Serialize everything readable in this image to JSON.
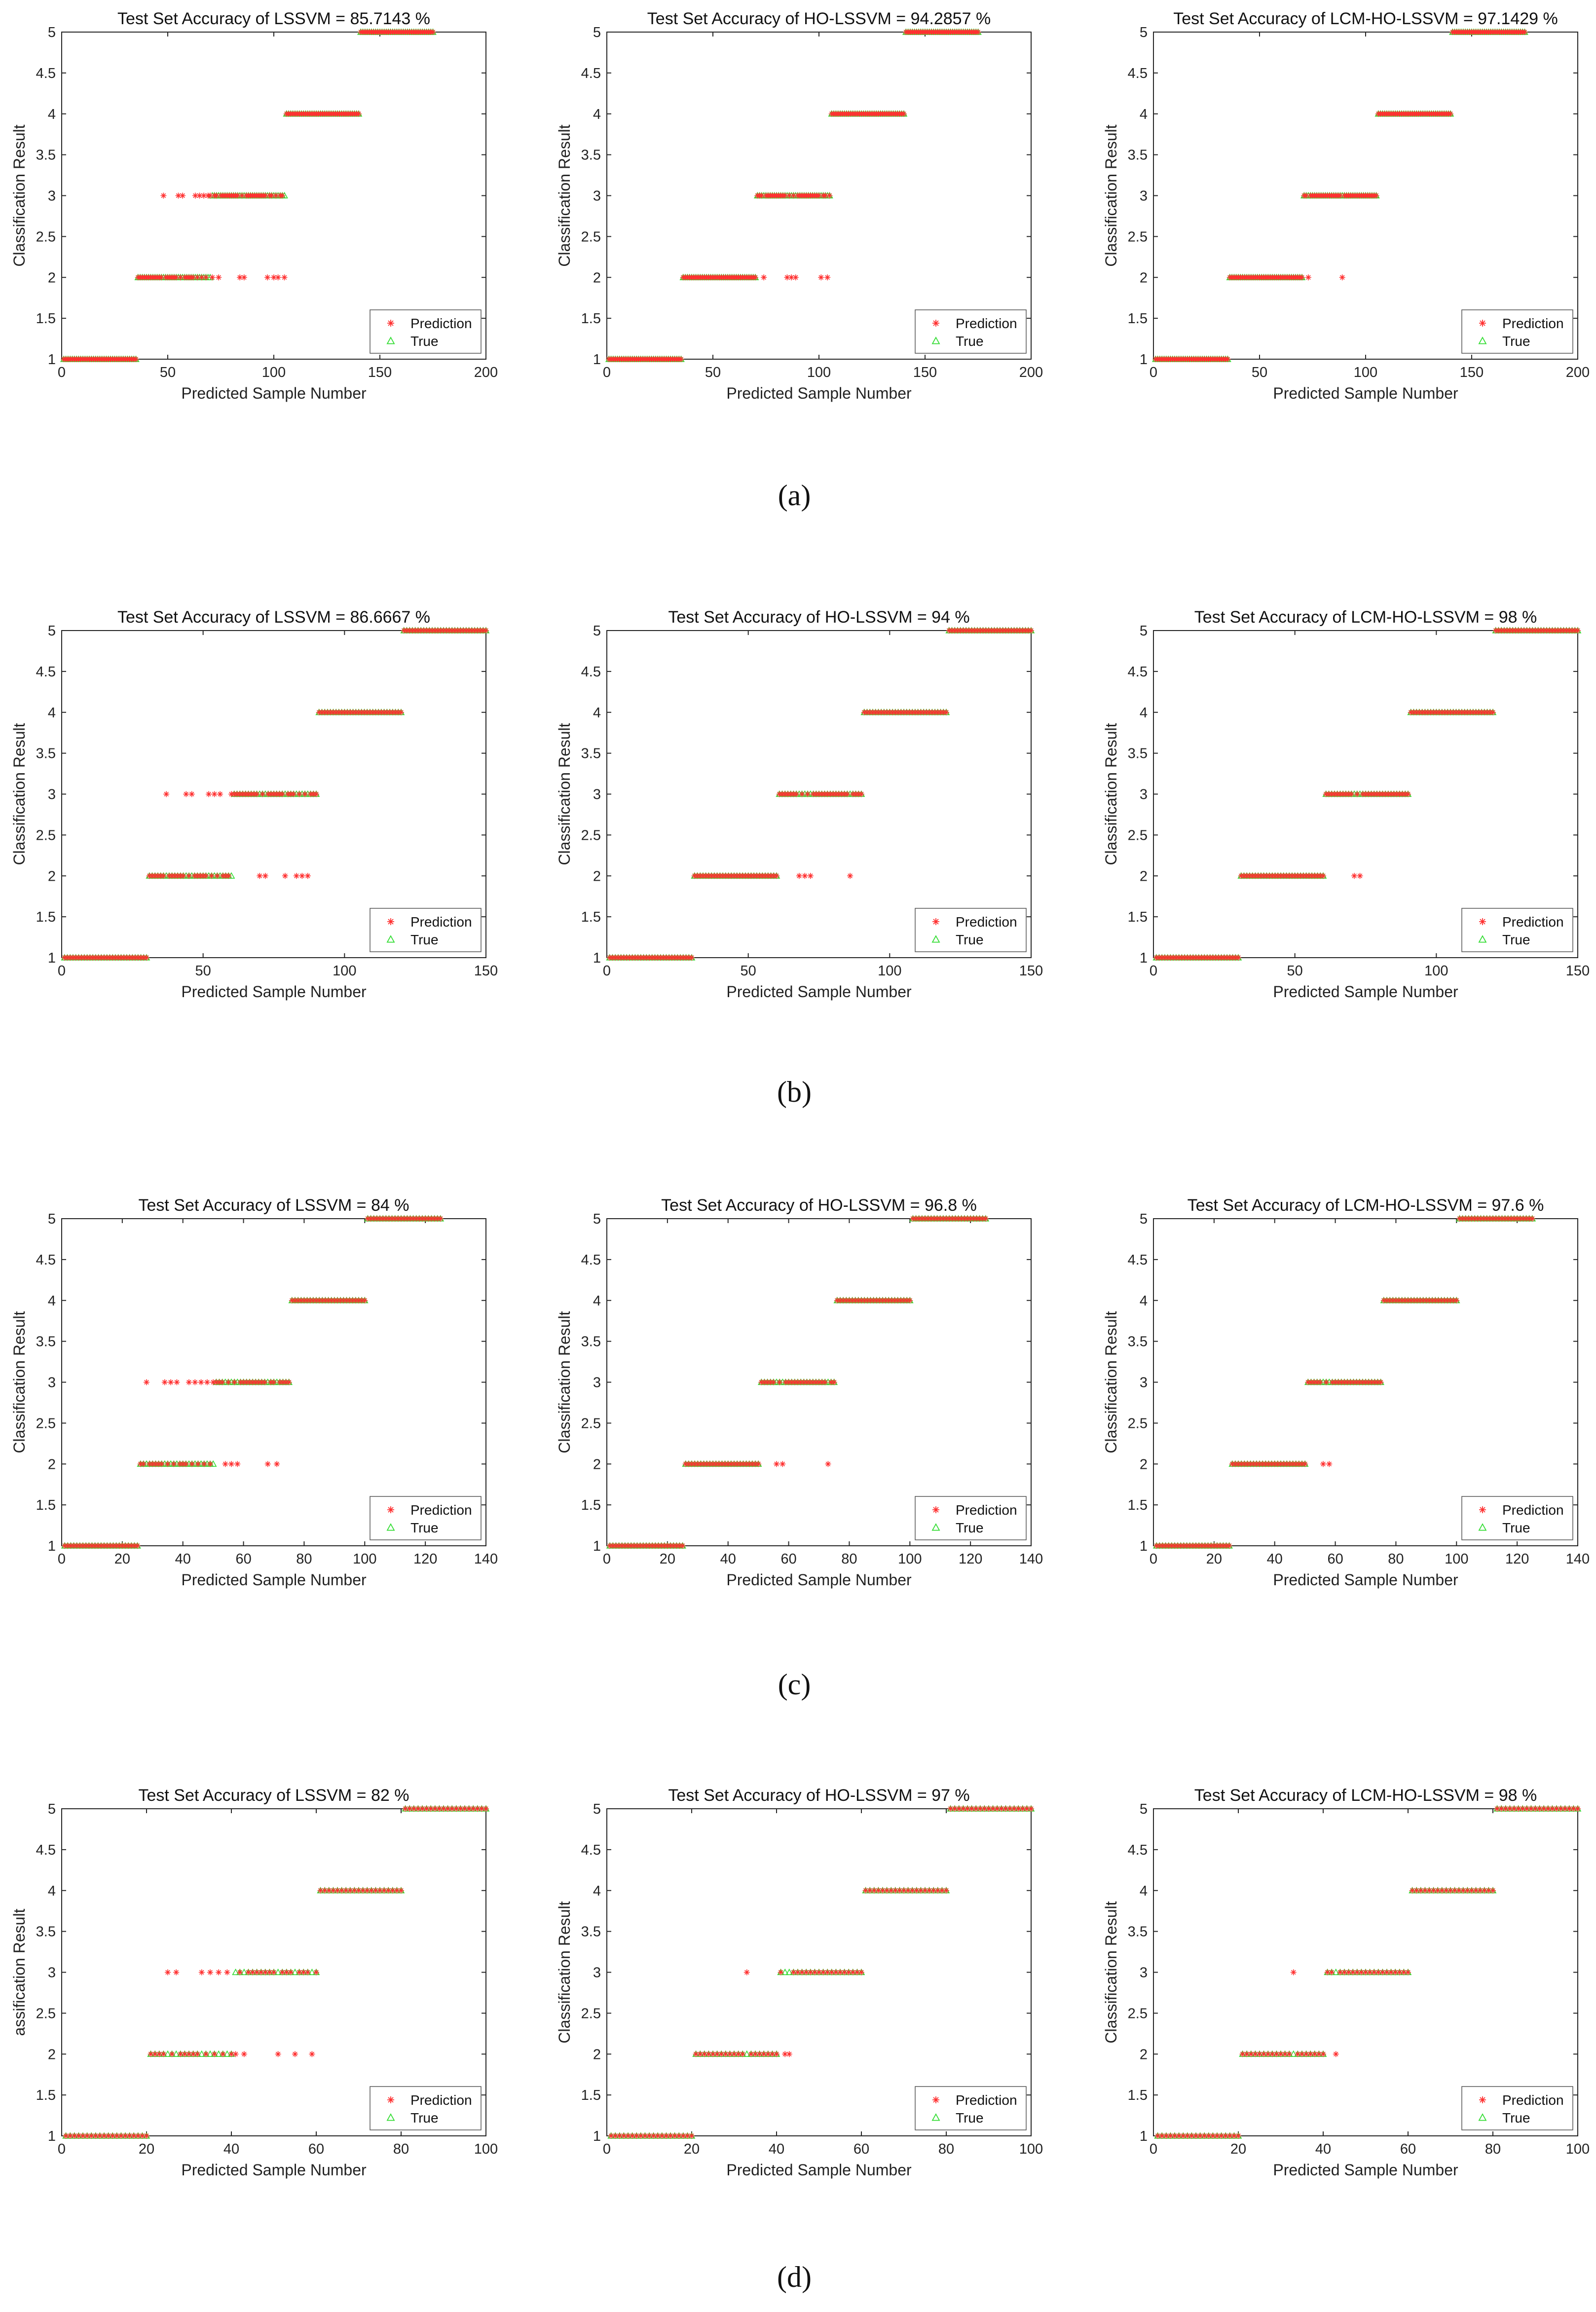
{
  "figure": {
    "captions": [
      "(a)",
      "(b)",
      "(c)",
      "(d)"
    ]
  },
  "colors": {
    "prediction": "#ff3030",
    "true": "#33dd33",
    "axis": "#262626"
  },
  "legend": {
    "prediction_label": "Prediction",
    "true_label": "True"
  },
  "chart_data": [
    {
      "id": "a1",
      "row": 0,
      "col": 0,
      "type": "scatter",
      "title": "Test Set Accuracy of LSSVM = 85.7143 %",
      "xlabel": "Predicted Sample Number",
      "ylabel": "Classification Result",
      "xlim": [
        0,
        200
      ],
      "ylim": [
        1,
        5
      ],
      "xticks": [
        0,
        50,
        100,
        150,
        200
      ],
      "yticks": [
        1,
        1.5,
        2,
        2.5,
        3,
        3.5,
        4,
        4.5,
        5
      ],
      "true_classes": [
        [
          1,
          35
        ],
        [
          36,
          70
        ],
        [
          71,
          105
        ],
        [
          106,
          140
        ],
        [
          141,
          175
        ]
      ],
      "prediction_changes": [
        {
          "class": 2,
          "x": [
            38,
            41,
            44,
            47,
            50,
            53,
            56,
            60,
            63,
            66,
            71,
            74,
            84,
            86,
            88,
            97,
            100,
            102,
            105
          ]
        },
        {
          "class": 3,
          "x": [
            48,
            55,
            57,
            63,
            65,
            67,
            69,
            70,
            72,
            76,
            80,
            83,
            88,
            91,
            94,
            98,
            103
          ]
        }
      ]
    },
    {
      "id": "a2",
      "row": 0,
      "col": 1,
      "type": "scatter",
      "title": "Test Set Accuracy of HO-LSSVM = 94.2857 %",
      "xlabel": "Predicted Sample Number",
      "ylabel": "Classification Result",
      "xlim": [
        0,
        200
      ],
      "ylim": [
        1,
        5
      ],
      "xticks": [
        0,
        50,
        100,
        150,
        200
      ],
      "yticks": [
        1,
        1.5,
        2,
        2.5,
        3,
        3.5,
        4,
        4.5,
        5
      ],
      "true_classes": [
        [
          1,
          35
        ],
        [
          36,
          70
        ],
        [
          71,
          105
        ],
        [
          106,
          140
        ],
        [
          141,
          175
        ]
      ],
      "prediction_changes": [
        {
          "class": 2,
          "x": [
            74,
            85,
            87,
            89,
            101,
            104
          ]
        },
        {
          "class": 3,
          "x": [
            73,
            90,
            95
          ]
        }
      ]
    },
    {
      "id": "a3",
      "row": 0,
      "col": 2,
      "type": "scatter",
      "title": "Test Set Accuracy of LCM-HO-LSSVM = 97.1429 %",
      "xlabel": "Predicted Sample Number",
      "ylabel": "Classification Result",
      "xlim": [
        0,
        200
      ],
      "ylim": [
        1,
        5
      ],
      "xticks": [
        0,
        50,
        100,
        150,
        200
      ],
      "yticks": [
        1,
        1.5,
        2,
        2.5,
        3,
        3.5,
        4,
        4.5,
        5
      ],
      "true_classes": [
        [
          1,
          35
        ],
        [
          36,
          70
        ],
        [
          71,
          105
        ],
        [
          106,
          140
        ],
        [
          141,
          175
        ]
      ],
      "prediction_changes": [
        {
          "class": 2,
          "x": [
            73,
            87,
            89
          ]
        },
        {
          "class": 3,
          "x": [
            87
          ]
        }
      ]
    },
    {
      "id": "b1",
      "row": 1,
      "col": 0,
      "type": "scatter",
      "title": "Test Set Accuracy of LSSVM = 86.6667 %",
      "xlabel": "Predicted Sample Number",
      "ylabel": "Classification Result",
      "xlim": [
        0,
        150
      ],
      "ylim": [
        1,
        5
      ],
      "xticks": [
        0,
        50,
        100,
        150
      ],
      "yticks": [
        1,
        1.5,
        2,
        2.5,
        3,
        3.5,
        4,
        4.5,
        5
      ],
      "true_classes": [
        [
          1,
          30
        ],
        [
          31,
          60
        ],
        [
          61,
          90
        ],
        [
          91,
          120
        ],
        [
          121,
          150
        ]
      ],
      "prediction_changes": [
        {
          "class": 2,
          "x": [
            33,
            37,
            41,
            45,
            49,
            53,
            57,
            68,
            70,
            72,
            79,
            83,
            85,
            87
          ]
        },
        {
          "class": 3,
          "x": [
            37,
            44,
            46,
            52,
            54,
            56,
            60,
            65,
            68,
            73,
            77,
            82,
            86,
            89
          ]
        }
      ]
    },
    {
      "id": "b2",
      "row": 1,
      "col": 1,
      "type": "scatter",
      "title": "Test Set Accuracy of HO-LSSVM = 94 %",
      "xlabel": "Predicted Sample Number",
      "ylabel": "Classification Result",
      "xlim": [
        0,
        150
      ],
      "ylim": [
        1,
        5
      ],
      "xticks": [
        0,
        50,
        100,
        150
      ],
      "yticks": [
        1,
        1.5,
        2,
        2.5,
        3,
        3.5,
        4,
        4.5,
        5
      ],
      "true_classes": [
        [
          1,
          30
        ],
        [
          31,
          60
        ],
        [
          61,
          90
        ],
        [
          91,
          120
        ],
        [
          121,
          150
        ]
      ],
      "prediction_changes": [
        {
          "class": 2,
          "x": [
            68,
            70,
            72,
            86,
            88
          ]
        },
        {
          "class": 3,
          "x": [
            88
          ]
        }
      ]
    },
    {
      "id": "b3",
      "row": 1,
      "col": 2,
      "type": "scatter",
      "title": "Test Set Accuracy of LCM-HO-LSSVM = 98 %",
      "xlabel": "Predicted Sample Number",
      "ylabel": "Classification Result",
      "xlim": [
        0,
        150
      ],
      "ylim": [
        1,
        5
      ],
      "xticks": [
        0,
        50,
        100,
        150
      ],
      "yticks": [
        1,
        1.5,
        2,
        2.5,
        3,
        3.5,
        4,
        4.5,
        5
      ],
      "true_classes": [
        [
          1,
          30
        ],
        [
          31,
          60
        ],
        [
          61,
          90
        ],
        [
          91,
          120
        ],
        [
          121,
          150
        ]
      ],
      "prediction_changes": [
        {
          "class": 2,
          "x": [
            71,
            73
          ]
        },
        {
          "class": 3,
          "x": []
        }
      ]
    },
    {
      "id": "c1",
      "row": 2,
      "col": 0,
      "type": "scatter",
      "title": "Test Set Accuracy of LSSVM = 84 %",
      "xlabel": "Predicted Sample Number",
      "ylabel": "Classification Result",
      "xlim": [
        0,
        140
      ],
      "ylim": [
        1,
        5
      ],
      "xticks": [
        0,
        20,
        40,
        60,
        80,
        100,
        120,
        140
      ],
      "yticks": [
        1,
        1.5,
        2,
        2.5,
        3,
        3.5,
        4,
        4.5,
        5
      ],
      "true_classes": [
        [
          1,
          25
        ],
        [
          26,
          50
        ],
        [
          51,
          75
        ],
        [
          76,
          100
        ],
        [
          101,
          125
        ]
      ],
      "prediction_changes": [
        {
          "class": 2,
          "x": [
            27,
            30,
            33,
            36,
            39,
            42,
            45,
            48,
            54,
            56,
            58,
            66,
            68,
            71,
            73
          ]
        },
        {
          "class": 3,
          "x": [
            28,
            34,
            36,
            38,
            42,
            44,
            46,
            48,
            50,
            55,
            59,
            63,
            66,
            70,
            73
          ]
        }
      ]
    },
    {
      "id": "c2",
      "row": 2,
      "col": 1,
      "type": "scatter",
      "title": "Test Set Accuracy of HO-LSSVM = 96.8 %",
      "xlabel": "Predicted Sample Number",
      "ylabel": "Classification Result",
      "xlim": [
        0,
        140
      ],
      "ylim": [
        1,
        5
      ],
      "xticks": [
        0,
        20,
        40,
        60,
        80,
        100,
        120,
        140
      ],
      "yticks": [
        1,
        1.5,
        2,
        2.5,
        3,
        3.5,
        4,
        4.5,
        5
      ],
      "true_classes": [
        [
          1,
          25
        ],
        [
          26,
          50
        ],
        [
          51,
          75
        ],
        [
          76,
          100
        ],
        [
          101,
          125
        ]
      ],
      "prediction_changes": [
        {
          "class": 2,
          "x": [
            56,
            58,
            73
          ]
        },
        {
          "class": 3,
          "x": []
        }
      ]
    },
    {
      "id": "c3",
      "row": 2,
      "col": 2,
      "type": "scatter",
      "title": "Test Set Accuracy of LCM-HO-LSSVM = 97.6 %",
      "xlabel": "Predicted Sample Number",
      "ylabel": "Classification Result",
      "xlim": [
        0,
        140
      ],
      "ylim": [
        1,
        5
      ],
      "xticks": [
        0,
        20,
        40,
        60,
        80,
        100,
        120,
        140
      ],
      "yticks": [
        1,
        1.5,
        2,
        2.5,
        3,
        3.5,
        4,
        4.5,
        5
      ],
      "true_classes": [
        [
          1,
          25
        ],
        [
          26,
          50
        ],
        [
          51,
          75
        ],
        [
          76,
          100
        ],
        [
          101,
          125
        ]
      ],
      "prediction_changes": [
        {
          "class": 2,
          "x": [
            56,
            58
          ]
        },
        {
          "class": 3,
          "x": []
        }
      ]
    },
    {
      "id": "d1",
      "row": 3,
      "col": 0,
      "type": "scatter",
      "title": "Test Set Accuracy of LSSVM = 82 %",
      "xlabel": "Predicted Sample Number",
      "ylabel": "assification Result",
      "xlim": [
        0,
        100
      ],
      "ylim": [
        1,
        5
      ],
      "xticks": [
        0,
        20,
        40,
        60,
        80,
        100
      ],
      "yticks": [
        1,
        1.5,
        2,
        2.5,
        3,
        3.5,
        4,
        4.5,
        5
      ],
      "true_classes": [
        [
          1,
          20
        ],
        [
          21,
          40
        ],
        [
          41,
          60
        ],
        [
          61,
          80
        ],
        [
          81,
          100
        ]
      ],
      "prediction_changes": [
        {
          "class": 2,
          "x": [
            23,
            26,
            29,
            32,
            35,
            38,
            41,
            43,
            51,
            52,
            55,
            57,
            59
          ]
        },
        {
          "class": 3,
          "x": [
            25,
            27,
            33,
            35,
            37,
            39,
            44,
            46,
            48,
            52,
            54,
            57
          ]
        }
      ]
    },
    {
      "id": "d2",
      "row": 3,
      "col": 1,
      "type": "scatter",
      "title": "Test Set Accuracy of HO-LSSVM = 97 %",
      "xlabel": "Predicted Sample Number",
      "ylabel": "Classification Result",
      "xlim": [
        0,
        100
      ],
      "ylim": [
        1,
        5
      ],
      "xticks": [
        0,
        20,
        40,
        60,
        80,
        100
      ],
      "yticks": [
        1,
        1.5,
        2,
        2.5,
        3,
        3.5,
        4,
        4.5,
        5
      ],
      "true_classes": [
        [
          1,
          20
        ],
        [
          21,
          40
        ],
        [
          41,
          60
        ],
        [
          61,
          80
        ],
        [
          81,
          100
        ]
      ],
      "prediction_changes": [
        {
          "class": 2,
          "x": [
            42,
            43
          ]
        },
        {
          "class": 3,
          "x": [
            33
          ]
        }
      ]
    },
    {
      "id": "d3",
      "row": 3,
      "col": 2,
      "type": "scatter",
      "title": "Test Set Accuracy of LCM-HO-LSSVM = 98 %",
      "xlabel": "Predicted Sample Number",
      "ylabel": "Classification Result",
      "xlim": [
        0,
        100
      ],
      "ylim": [
        1,
        5
      ],
      "xticks": [
        0,
        20,
        40,
        60,
        80,
        100
      ],
      "yticks": [
        1,
        1.5,
        2,
        2.5,
        3,
        3.5,
        4,
        4.5,
        5
      ],
      "true_classes": [
        [
          1,
          20
        ],
        [
          21,
          40
        ],
        [
          41,
          60
        ],
        [
          61,
          80
        ],
        [
          81,
          100
        ]
      ],
      "prediction_changes": [
        {
          "class": 2,
          "x": [
            43
          ]
        },
        {
          "class": 3,
          "x": [
            33
          ]
        }
      ]
    }
  ]
}
